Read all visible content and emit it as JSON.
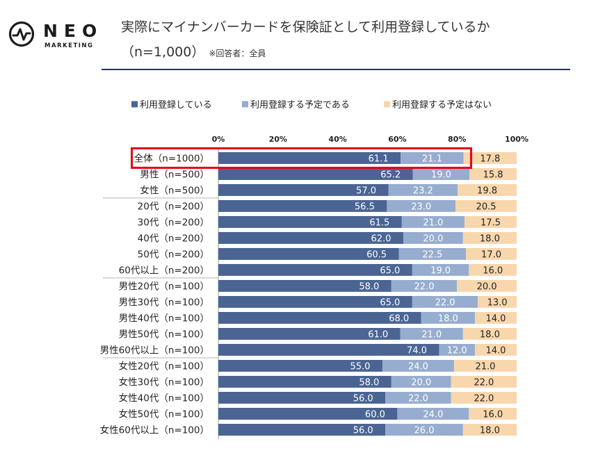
{
  "header": {
    "logo_main": "NEO",
    "logo_sub": "MARKETING",
    "title": "実際にマイナンバーカードを保険証として利用登録しているか",
    "subtitle": "（n=1,000）",
    "note": "※回答者：全員"
  },
  "colors": {
    "series1": "#4a6594",
    "series2": "#97adcf",
    "series3": "#f8d7ad",
    "highlight": "#e60012",
    "rule": "#1f3864"
  },
  "chart_data": {
    "type": "bar",
    "orientation": "horizontal",
    "stacked": true,
    "percent_stacked": true,
    "categories": [
      "全体（n=1000）",
      "男性（n=500）",
      "女性（n=500）",
      "20代（n=200）",
      "30代（n=200）",
      "40代（n=200）",
      "50代（n=200）",
      "60代以上（n=200）",
      "男性20代（n=100）",
      "男性30代（n=100）",
      "男性40代（n=100）",
      "男性50代（n=100）",
      "男性60代以上（n=100）",
      "女性20代（n=100）",
      "女性30代（n=100）",
      "女性40代（n=100）",
      "女性50代（n=100）",
      "女性60代以上（n=100）"
    ],
    "series": [
      {
        "name": "利用登録している",
        "values": [
          61.1,
          65.2,
          57.0,
          56.5,
          61.5,
          62.0,
          60.5,
          65.0,
          58.0,
          65.0,
          68.0,
          61.0,
          74.0,
          55.0,
          58.0,
          56.0,
          60.0,
          56.0
        ]
      },
      {
        "name": "利用登録する予定である",
        "values": [
          21.1,
          19.0,
          23.2,
          23.0,
          21.0,
          20.0,
          22.5,
          19.0,
          22.0,
          22.0,
          18.0,
          21.0,
          12.0,
          24.0,
          20.0,
          22.0,
          24.0,
          26.0
        ]
      },
      {
        "name": "利用登録する予定はない",
        "values": [
          17.8,
          15.8,
          19.8,
          20.5,
          17.5,
          18.0,
          17.0,
          16.0,
          20.0,
          13.0,
          14.0,
          18.0,
          14.0,
          21.0,
          22.0,
          22.0,
          16.0,
          18.0
        ]
      }
    ],
    "labels": [
      [
        "61.1",
        "65.2",
        "57.0",
        "56.5",
        "61.5",
        "62.0",
        "60.5",
        "65.0",
        "58.0",
        "65.0",
        "68.0",
        "61.0",
        "74.0",
        "55.0",
        "58.0",
        "56.0",
        "60.0",
        "56.0"
      ],
      [
        "21.1",
        "19.0",
        "23.2",
        "23.0",
        "21.0",
        "20.0",
        "22.5",
        "19.0",
        "22.0",
        "22.0",
        "18.0",
        "21.0",
        "12.0",
        "24.0",
        "20.0",
        "22.0",
        "24.0",
        "26.0"
      ],
      [
        "17.8",
        "15.8",
        "19.8",
        "20.5",
        "17.5",
        "18.0",
        "17.0",
        "16.0",
        "20.0",
        "13.0",
        "14.0",
        "18.0",
        "14.0",
        "21.0",
        "22.0",
        "22.0",
        "16.0",
        "18.0"
      ]
    ],
    "x_ticks": [
      "0%",
      "20%",
      "40%",
      "60%",
      "80%",
      "100%"
    ],
    "xlim": [
      0,
      100
    ],
    "legend_position": "top",
    "highlighted_category": "全体（n=1000）"
  }
}
